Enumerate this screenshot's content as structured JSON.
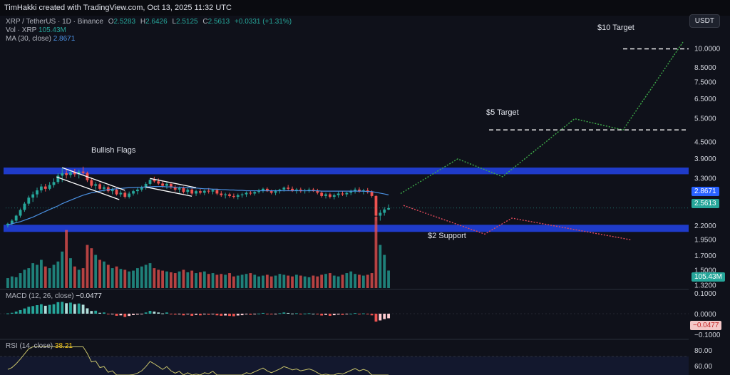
{
  "header": {
    "created_by": "TimHakki created with TradingView.com, Oct 13, 2025 11:32 UTC"
  },
  "currency_button": "USDT",
  "legend": {
    "symbol": "XRP / TetherUS · 1D · Binance",
    "o_label": "O",
    "o_value": "2.5283",
    "h_label": "H",
    "h_value": "2.6426",
    "l_label": "L",
    "l_value": "2.5125",
    "c_label": "C",
    "c_value": "2.5613",
    "change": "+0.0331 (+1.31%)",
    "vol_label": "Vol · XRP",
    "vol_value": "105.43M",
    "ma_label": "MA (30, close)",
    "ma_value": "2.8671",
    "macd_label": "MACD (12, 26, close)",
    "macd_value": "−0.0477",
    "rsi_label": "RSI (14, close)",
    "rsi_value": "38.21"
  },
  "annotations": {
    "bullish_flags": "Bullish Flags",
    "target_10": "$10 Target",
    "target_5": "$5 Target",
    "support_2": "$2 Support"
  },
  "badges": {
    "ma": "2.8671",
    "price": "2.5613",
    "volume": "105.43M",
    "macd": "−0.0477"
  },
  "colors": {
    "up": "#26a69a",
    "down": "#ef5350",
    "zone": "#1f3bc9",
    "ma": "#4a90e2",
    "projection_up": "#3fae4a",
    "projection_down": "#e04a5a",
    "rsi": "#c7c26a"
  },
  "chart_data": [
    {
      "type": "candlestick",
      "title": "XRP / TetherUS · 1D · Binance",
      "price_axis_log": true,
      "y_ticks": [
        "10.0000",
        "8.5000",
        "7.5000",
        "6.5000",
        "5.5000",
        "4.5000",
        "3.9000",
        "3.3000",
        "2.2000",
        "1.9500",
        "1.7000",
        "1.5000",
        "1.3200"
      ],
      "ylim": [
        1.3,
        12.5
      ],
      "price_last": 2.5613,
      "ma30_last": 2.8671,
      "resistance_zone": [
        3.4,
        3.6
      ],
      "support_zone": [
        2.12,
        2.22
      ],
      "candles_ohlc": [
        [
          2.21,
          2.26,
          2.17,
          2.24
        ],
        [
          2.24,
          2.33,
          2.21,
          2.3
        ],
        [
          2.3,
          2.42,
          2.27,
          2.4
        ],
        [
          2.4,
          2.55,
          2.36,
          2.52
        ],
        [
          2.52,
          2.7,
          2.48,
          2.66
        ],
        [
          2.66,
          2.85,
          2.61,
          2.8
        ],
        [
          2.8,
          2.95,
          2.7,
          2.88
        ],
        [
          2.88,
          3.05,
          2.8,
          2.98
        ],
        [
          2.98,
          3.15,
          2.92,
          3.08
        ],
        [
          3.08,
          3.15,
          2.95,
          3.02
        ],
        [
          3.02,
          3.2,
          2.98,
          3.12
        ],
        [
          3.12,
          3.3,
          3.05,
          3.2
        ],
        [
          3.2,
          3.45,
          3.15,
          3.38
        ],
        [
          3.38,
          3.62,
          3.2,
          3.45
        ],
        [
          3.45,
          3.55,
          3.3,
          3.4
        ],
        [
          3.4,
          3.55,
          3.32,
          3.48
        ],
        [
          3.48,
          3.58,
          3.35,
          3.42
        ],
        [
          3.42,
          3.56,
          3.3,
          3.5
        ],
        [
          3.5,
          3.65,
          3.4,
          3.46
        ],
        [
          3.46,
          3.5,
          3.2,
          3.25
        ],
        [
          3.25,
          3.32,
          3.05,
          3.1
        ],
        [
          3.1,
          3.2,
          3.0,
          3.14
        ],
        [
          3.14,
          3.18,
          2.98,
          3.02
        ],
        [
          3.02,
          3.12,
          2.95,
          3.06
        ],
        [
          3.06,
          3.1,
          2.92,
          2.96
        ],
        [
          2.96,
          3.05,
          2.88,
          3.0
        ],
        [
          3.0,
          3.04,
          2.85,
          2.88
        ],
        [
          2.88,
          2.98,
          2.82,
          2.92
        ],
        [
          2.92,
          2.96,
          2.78,
          2.82
        ],
        [
          2.82,
          2.95,
          2.78,
          2.9
        ],
        [
          2.9,
          3.0,
          2.85,
          2.96
        ],
        [
          2.96,
          3.05,
          2.88,
          3.0
        ],
        [
          3.0,
          3.1,
          2.95,
          3.05
        ],
        [
          3.05,
          3.2,
          3.0,
          3.15
        ],
        [
          3.15,
          3.3,
          3.1,
          3.26
        ],
        [
          3.26,
          3.35,
          3.18,
          3.22
        ],
        [
          3.22,
          3.3,
          3.12,
          3.16
        ],
        [
          3.16,
          3.22,
          3.05,
          3.1
        ],
        [
          3.1,
          3.2,
          3.02,
          3.15
        ],
        [
          3.15,
          3.18,
          3.02,
          3.06
        ],
        [
          3.06,
          3.12,
          2.95,
          3.0
        ],
        [
          3.0,
          3.08,
          2.92,
          3.04
        ],
        [
          3.04,
          3.08,
          2.9,
          2.94
        ],
        [
          2.94,
          3.05,
          2.88,
          3.0
        ],
        [
          3.0,
          3.05,
          2.86,
          2.9
        ],
        [
          2.9,
          3.0,
          2.84,
          2.96
        ],
        [
          2.96,
          3.02,
          2.88,
          2.92
        ],
        [
          2.92,
          3.0,
          2.86,
          2.97
        ],
        [
          2.97,
          3.04,
          2.9,
          2.95
        ],
        [
          2.95,
          3.02,
          2.88,
          2.99
        ],
        [
          2.99,
          3.02,
          2.86,
          2.9
        ],
        [
          2.9,
          2.96,
          2.82,
          2.86
        ],
        [
          2.86,
          2.92,
          2.78,
          2.88
        ],
        [
          2.88,
          2.92,
          2.8,
          2.84
        ],
        [
          2.84,
          2.9,
          2.78,
          2.82
        ],
        [
          2.82,
          2.9,
          2.76,
          2.86
        ],
        [
          2.86,
          2.92,
          2.8,
          2.88
        ],
        [
          2.88,
          2.95,
          2.82,
          2.92
        ],
        [
          2.92,
          2.98,
          2.86,
          2.9
        ],
        [
          2.9,
          2.96,
          2.85,
          2.94
        ],
        [
          2.94,
          3.02,
          2.9,
          2.98
        ],
        [
          2.98,
          3.05,
          2.92,
          3.02
        ],
        [
          3.02,
          3.06,
          2.94,
          2.96
        ],
        [
          2.96,
          3.0,
          2.88,
          2.92
        ],
        [
          2.92,
          3.0,
          2.86,
          2.96
        ],
        [
          2.96,
          3.02,
          2.9,
          3.0
        ],
        [
          3.0,
          3.08,
          2.95,
          3.05
        ],
        [
          3.05,
          3.12,
          2.98,
          3.02
        ],
        [
          3.02,
          3.08,
          2.94,
          2.98
        ],
        [
          2.98,
          3.04,
          2.9,
          3.0
        ],
        [
          3.0,
          3.05,
          2.92,
          2.96
        ],
        [
          2.96,
          3.02,
          2.9,
          2.98
        ],
        [
          2.98,
          3.05,
          2.92,
          3.0
        ],
        [
          3.0,
          3.04,
          2.94,
          2.97
        ],
        [
          2.97,
          3.02,
          2.88,
          2.92
        ],
        [
          2.92,
          2.96,
          2.8,
          2.84
        ],
        [
          2.84,
          2.92,
          2.78,
          2.88
        ],
        [
          2.88,
          2.92,
          2.78,
          2.82
        ],
        [
          2.82,
          2.9,
          2.76,
          2.86
        ],
        [
          2.86,
          2.95,
          2.8,
          2.9
        ],
        [
          2.9,
          2.96,
          2.84,
          2.88
        ],
        [
          2.88,
          2.94,
          2.82,
          2.92
        ],
        [
          2.92,
          3.0,
          2.86,
          2.96
        ],
        [
          2.96,
          3.05,
          2.9,
          3.0
        ],
        [
          3.0,
          3.06,
          2.92,
          2.95
        ],
        [
          2.95,
          3.02,
          2.88,
          2.98
        ],
        [
          2.98,
          3.04,
          2.9,
          2.94
        ],
        [
          2.94,
          2.98,
          2.8,
          2.84
        ],
        [
          2.84,
          2.86,
          2.3,
          2.4
        ],
        [
          2.4,
          2.52,
          2.3,
          2.46
        ],
        [
          2.46,
          2.58,
          2.4,
          2.53
        ],
        [
          2.5283,
          2.6426,
          2.5125,
          2.5613
        ]
      ],
      "ma30": [
        2.22,
        2.24,
        2.26,
        2.28,
        2.31,
        2.34,
        2.37,
        2.41,
        2.45,
        2.49,
        2.53,
        2.57,
        2.61,
        2.66,
        2.7,
        2.74,
        2.78,
        2.82,
        2.86,
        2.89,
        2.92,
        2.94,
        2.96,
        2.98,
        3.0,
        3.01,
        3.02,
        3.03,
        3.04,
        3.05,
        3.05,
        3.06,
        3.06,
        3.07,
        3.07,
        3.08,
        3.08,
        3.08,
        3.07,
        3.07,
        3.06,
        3.06,
        3.05,
        3.05,
        3.04,
        3.04,
        3.03,
        3.02,
        3.02,
        3.01,
        3.01,
        3.0,
        3.0,
        2.99,
        2.99,
        2.98,
        2.98,
        2.97,
        2.97,
        2.97,
        2.97,
        2.97,
        2.97,
        2.97,
        2.97,
        2.97,
        2.97,
        2.97,
        2.97,
        2.97,
        2.97,
        2.97,
        2.97,
        2.97,
        2.97,
        2.96,
        2.96,
        2.96,
        2.96,
        2.96,
        2.96,
        2.96,
        2.96,
        2.96,
        2.96,
        2.96,
        2.95,
        2.95,
        2.93,
        2.91,
        2.89,
        2.8671
      ],
      "volume_millions": [
        60,
        70,
        65,
        90,
        110,
        120,
        150,
        140,
        170,
        130,
        120,
        140,
        160,
        220,
        350,
        180,
        130,
        110,
        120,
        260,
        240,
        200,
        170,
        160,
        140,
        120,
        130,
        115,
        110,
        100,
        105,
        120,
        130,
        140,
        150,
        120,
        110,
        105,
        100,
        95,
        90,
        100,
        110,
        95,
        105,
        90,
        95,
        100,
        85,
        90,
        80,
        85,
        80,
        90,
        70,
        75,
        80,
        85,
        90,
        80,
        70,
        75,
        80,
        70,
        75,
        85,
        80,
        75,
        70,
        80,
        75,
        70,
        65,
        75,
        70,
        80,
        85,
        90,
        75,
        70,
        80,
        90,
        100,
        85,
        80,
        75,
        80,
        90,
        430,
        260,
        200,
        105.43
      ],
      "projection_bullish": [
        [
          0,
          2.9
        ],
        [
          1,
          3.9
        ],
        [
          2,
          3.35
        ],
        [
          3,
          5.5
        ],
        [
          4,
          5.0
        ],
        [
          5,
          10.6
        ]
      ],
      "projection_bearish": [
        [
          0,
          2.62
        ],
        [
          1,
          2.05
        ],
        [
          2,
          2.35
        ],
        [
          3,
          1.95
        ]
      ]
    },
    {
      "type": "histogram",
      "title": "MACD (12, 26, close)",
      "y_ticks": [
        "0.1000",
        "0.0000",
        "−0.1000"
      ],
      "ylim": [
        -0.12,
        0.12
      ],
      "last": -0.0477
    },
    {
      "type": "line",
      "title": "RSI (14, close)",
      "y_ticks": [
        "80.00",
        "60.00"
      ],
      "last": 38.21
    }
  ]
}
